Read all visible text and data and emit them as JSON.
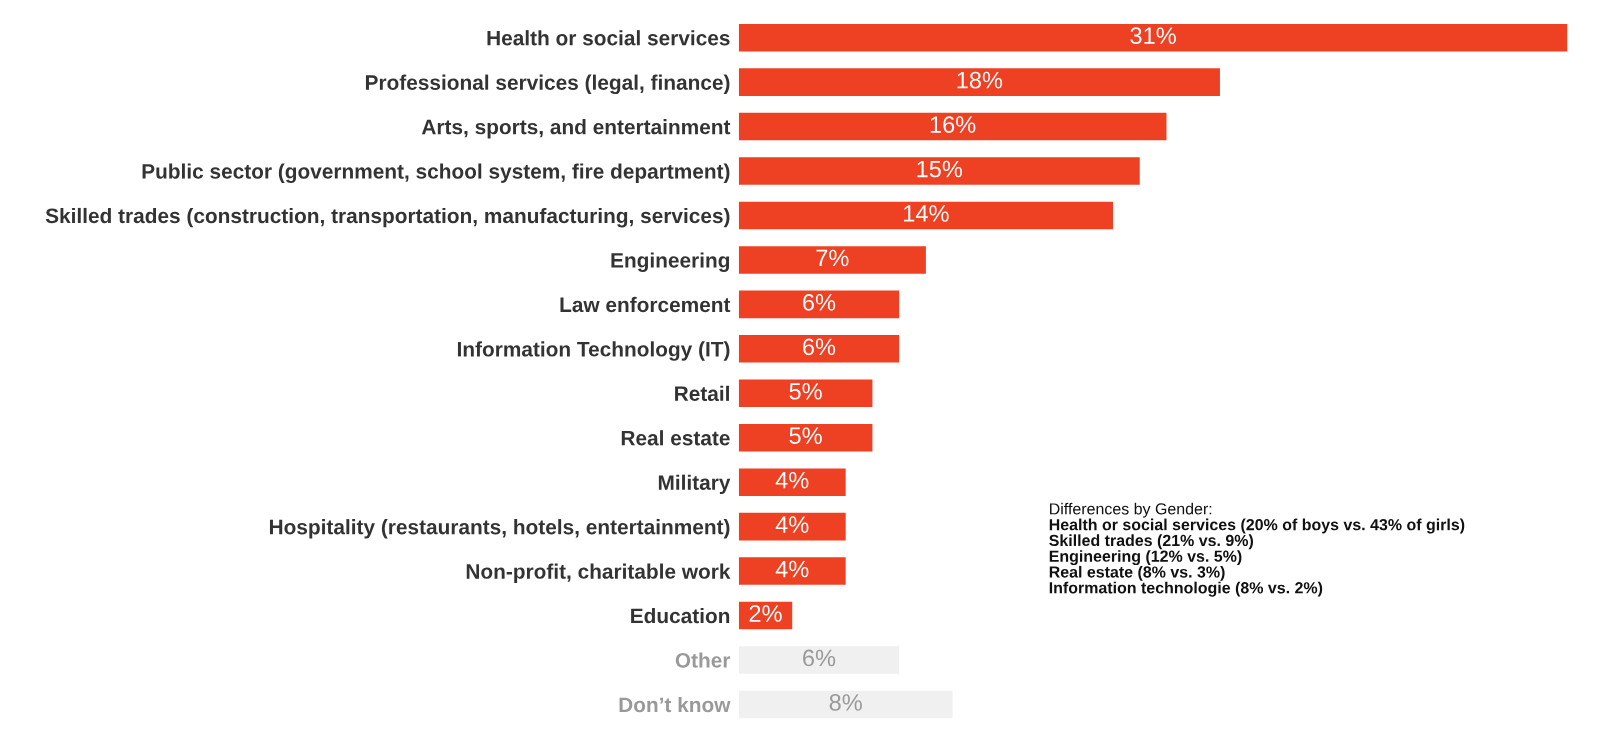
{
  "chart_data": {
    "type": "bar",
    "orientation": "horizontal",
    "categories": [
      "Health or social services",
      "Professional services (legal, finance)",
      "Arts, sports, and entertainment",
      "Public sector (government, school system, fire department)",
      "Skilled trades (construction, transportation, manufacturing, services)",
      "Engineering",
      "Law enforcement",
      "Information Technology (IT)",
      "Retail",
      "Real estate",
      "Military",
      "Hospitality (restaurants, hotels, entertainment)",
      "Non-profit, charitable work",
      "Education",
      "Other",
      "Don’t know"
    ],
    "values": [
      31,
      18,
      16,
      15,
      14,
      7,
      6,
      6,
      5,
      5,
      4,
      4,
      4,
      2,
      6,
      8
    ],
    "value_labels": [
      "31%",
      "18%",
      "16%",
      "15%",
      "14%",
      "7%",
      "6%",
      "6%",
      "5%",
      "5%",
      "4%",
      "4%",
      "4%",
      "2%",
      "6%",
      "8%"
    ],
    "colors": [
      "#ee4023",
      "#ee4023",
      "#ee4023",
      "#ee4023",
      "#ee4023",
      "#ee4023",
      "#ee4023",
      "#ee4023",
      "#ee4023",
      "#ee4023",
      "#ee4023",
      "#ee4023",
      "#ee4023",
      "#ee4023",
      "#f0f0f0",
      "#f0f0f0"
    ],
    "tick_labels": "y",
    "annotations": [
      "Differences by Gender:",
      "Health or social services (20% of boys vs. 43% of girls)",
      "Skilled trades (21% vs. 9%)",
      "Engineering (12% vs. 5%)",
      "Real estate (8% vs. 3%)",
      "Information technologie (8% vs. 2%)"
    ]
  }
}
